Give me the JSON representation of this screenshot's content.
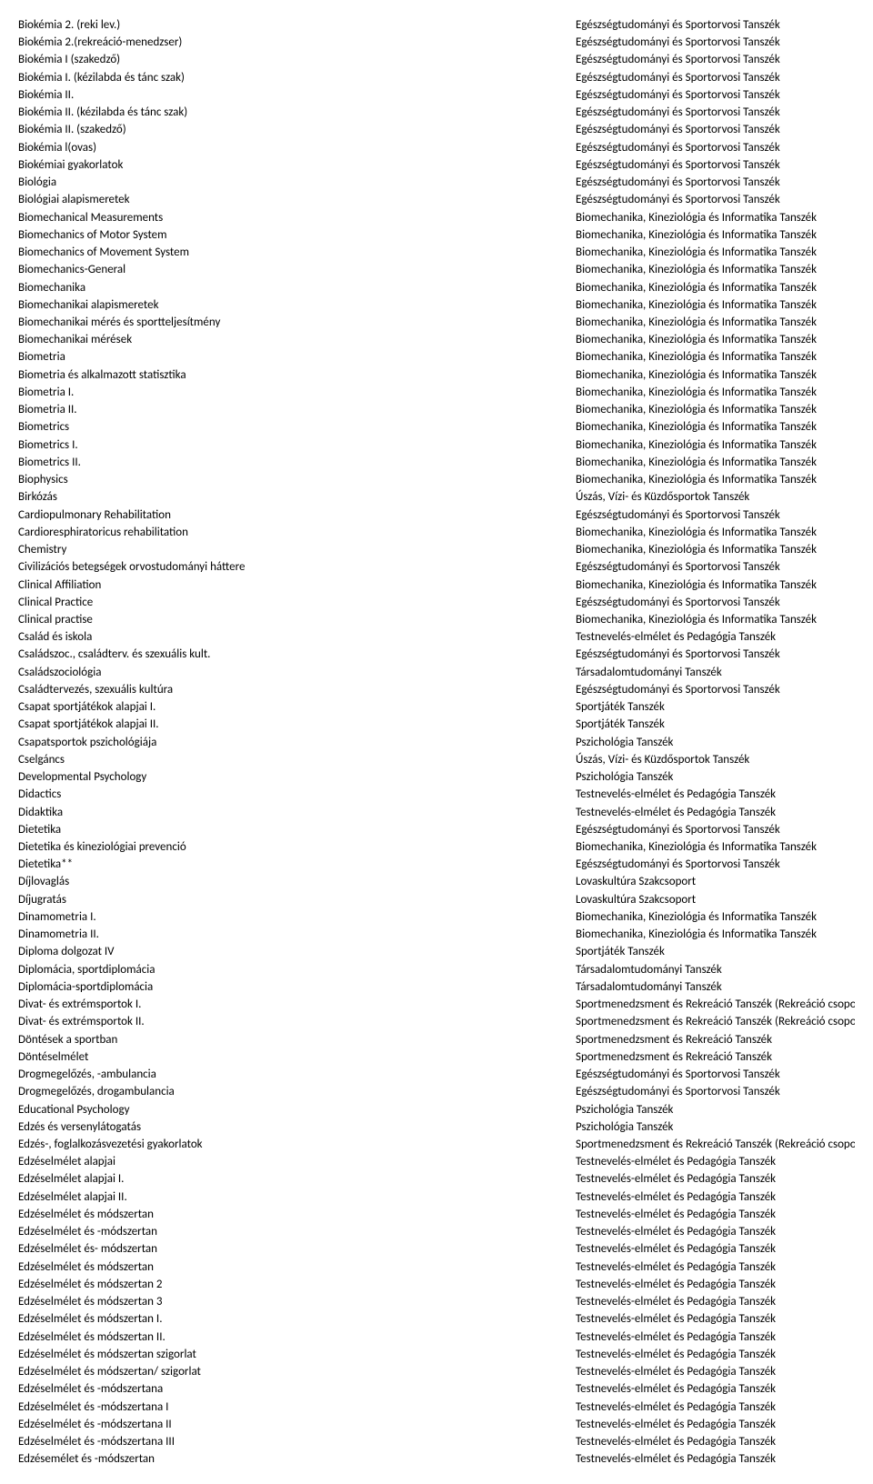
{
  "rows": [
    {
      "a": "Biokémia 2. (reki lev.)",
      "b": "Egészségtudományi és Sportorvosi Tanszék"
    },
    {
      "a": "Biokémia 2.(rekreáció-menedzser)",
      "b": "Egészségtudományi és Sportorvosi Tanszék"
    },
    {
      "a": "Biokémia I (szakedző)",
      "b": "Egészségtudományi és Sportorvosi Tanszék"
    },
    {
      "a": "Biokémia I. (kézilabda és tánc szak)",
      "b": "Egészségtudományi és Sportorvosi Tanszék"
    },
    {
      "a": "Biokémia II.",
      "b": "Egészségtudományi és Sportorvosi Tanszék"
    },
    {
      "a": "Biokémia II. (kézilabda és tánc szak)",
      "b": "Egészségtudományi és Sportorvosi Tanszék"
    },
    {
      "a": "Biokémia II. (szakedző)",
      "b": "Egészségtudományi és Sportorvosi Tanszék"
    },
    {
      "a": "Biokémia l(ovas)",
      "b": "Egészségtudományi és Sportorvosi Tanszék"
    },
    {
      "a": "Biokémiai gyakorlatok",
      "b": "Egészségtudományi és Sportorvosi Tanszék"
    },
    {
      "a": "Biológia",
      "b": "Egészségtudományi és Sportorvosi Tanszék"
    },
    {
      "a": "Biológiai alapismeretek",
      "b": "Egészségtudományi és Sportorvosi Tanszék"
    },
    {
      "a": "Biomechanical Measurements",
      "b": "Biomechanika, Kineziológia és Informatika Tanszék"
    },
    {
      "a": "Biomechanics of Motor System",
      "b": "Biomechanika, Kineziológia és Informatika Tanszék"
    },
    {
      "a": "Biomechanics of Movement System",
      "b": "Biomechanika, Kineziológia és Informatika Tanszék"
    },
    {
      "a": "Biomechanics-General",
      "b": "Biomechanika, Kineziológia és Informatika Tanszék"
    },
    {
      "a": "Biomechanika",
      "b": "Biomechanika, Kineziológia és Informatika Tanszék"
    },
    {
      "a": "Biomechanikai alapismeretek",
      "b": "Biomechanika, Kineziológia és Informatika Tanszék"
    },
    {
      "a": "Biomechanikai mérés és sportteljesítmény",
      "b": "Biomechanika, Kineziológia és Informatika Tanszék"
    },
    {
      "a": "Biomechanikai mérések",
      "b": "Biomechanika, Kineziológia és Informatika Tanszék"
    },
    {
      "a": "Biometria",
      "b": "Biomechanika, Kineziológia és Informatika Tanszék"
    },
    {
      "a": "Biometria és alkalmazott statisztika",
      "b": "Biomechanika, Kineziológia és Informatika Tanszék"
    },
    {
      "a": "Biometria I.",
      "b": "Biomechanika, Kineziológia és Informatika Tanszék"
    },
    {
      "a": "Biometria II.",
      "b": "Biomechanika, Kineziológia és Informatika Tanszék"
    },
    {
      "a": "Biometrics",
      "b": "Biomechanika, Kineziológia és Informatika Tanszék"
    },
    {
      "a": "Biometrics I.",
      "b": "Biomechanika, Kineziológia és Informatika Tanszék"
    },
    {
      "a": "Biometrics II.",
      "b": "Biomechanika, Kineziológia és Informatika Tanszék"
    },
    {
      "a": "Biophysics",
      "b": "Biomechanika, Kineziológia és Informatika Tanszék"
    },
    {
      "a": "Birkózás",
      "b": "Úszás, Vízi- és Küzdősportok Tanszék"
    },
    {
      "a": "Cardiopulmonary Rehabilitation",
      "b": "Egészségtudományi és Sportorvosi Tanszék"
    },
    {
      "a": "Cardioresphiratoricus rehabilitation",
      "b": "Biomechanika, Kineziológia és Informatika Tanszék"
    },
    {
      "a": "Chemistry",
      "b": "Biomechanika, Kineziológia és Informatika Tanszék"
    },
    {
      "a": "Civilizációs betegségek orvostudományi háttere",
      "b": "Egészségtudományi és Sportorvosi Tanszék"
    },
    {
      "a": "Clinical Affiliation",
      "b": "Biomechanika, Kineziológia és Informatika Tanszék"
    },
    {
      "a": "Clinical Practice",
      "b": "Egészségtudományi és Sportorvosi Tanszék"
    },
    {
      "a": "Clinical practise",
      "b": "Biomechanika, Kineziológia és Informatika Tanszék"
    },
    {
      "a": "Család és iskola",
      "b": "Testnevelés-elmélet és Pedagógia Tanszék"
    },
    {
      "a": "Családszoc., családterv. és szexuális kult.",
      "b": "Egészségtudományi és Sportorvosi Tanszék"
    },
    {
      "a": "Családszociológia",
      "b": "Társadalomtudományi Tanszék"
    },
    {
      "a": "Családtervezés, szexuális kultúra",
      "b": "Egészségtudományi és Sportorvosi Tanszék"
    },
    {
      "a": "Csapat sportjátékok alapjai I.",
      "b": "Sportjáték Tanszék"
    },
    {
      "a": "Csapat sportjátékok alapjai II.",
      "b": "Sportjáték Tanszék"
    },
    {
      "a": "Csapatsportok pszichológiája",
      "b": "Pszichológia Tanszék"
    },
    {
      "a": "Cselgáncs",
      "b": "Úszás, Vízi- és Küzdősportok Tanszék"
    },
    {
      "a": "Developmental Psychology",
      "b": "Pszichológia Tanszék"
    },
    {
      "a": "Didactics",
      "b": "Testnevelés-elmélet és Pedagógia Tanszék"
    },
    {
      "a": "Didaktika",
      "b": "Testnevelés-elmélet és Pedagógia Tanszék"
    },
    {
      "a": "Dietetika",
      "b": "Egészségtudományi és Sportorvosi Tanszék"
    },
    {
      "a": "Dietetika és kineziológiai prevenció",
      "b": "Biomechanika, Kineziológia és Informatika Tanszék"
    },
    {
      "a": "Dietetika**",
      "b": "Egészségtudományi és Sportorvosi Tanszék"
    },
    {
      "a": "Díjlovaglás",
      "b": "Lovaskultúra Szakcsoport"
    },
    {
      "a": "Díjugratás",
      "b": "Lovaskultúra Szakcsoport"
    },
    {
      "a": "Dinamometria I.",
      "b": "Biomechanika, Kineziológia és Informatika Tanszék"
    },
    {
      "a": "Dinamometria II.",
      "b": "Biomechanika, Kineziológia és Informatika Tanszék"
    },
    {
      "a": "Diploma dolgozat IV",
      "b": "Sportjáték Tanszék"
    },
    {
      "a": "Diplomácia, sportdiplomácia",
      "b": "Társadalomtudományi Tanszék"
    },
    {
      "a": "Diplomácia-sportdiplomácia",
      "b": "Társadalomtudományi Tanszék"
    },
    {
      "a": "Divat- és extrémsportok I.",
      "b": "Sportmenedzsment és Rekreáció Tanszék (Rekreáció csoport)"
    },
    {
      "a": "Divat- és extrémsportok II.",
      "b": "Sportmenedzsment és Rekreáció Tanszék (Rekreáció csoport)"
    },
    {
      "a": "Döntések a sportban",
      "b": "Sportmenedzsment és Rekreáció Tanszék"
    },
    {
      "a": "Döntéselmélet",
      "b": "Sportmenedzsment és Rekreáció Tanszék"
    },
    {
      "a": "Drogmegelőzés, -ambulancia",
      "b": "Egészségtudományi és Sportorvosi Tanszék"
    },
    {
      "a": "Drogmegelőzés, drogambulancia",
      "b": "Egészségtudományi és Sportorvosi Tanszék"
    },
    {
      "a": "Educational Psychology",
      "b": "Pszichológia Tanszék"
    },
    {
      "a": "Edzés és versenylátogatás",
      "b": "Pszichológia Tanszék"
    },
    {
      "a": "Edzés-, foglalkozásvezetési gyakorlatok",
      "b": "Sportmenedzsment és Rekreáció Tanszék (Rekreáció csoport)"
    },
    {
      "a": "Edzéselmélet alapjai",
      "b": "Testnevelés-elmélet és Pedagógia Tanszék"
    },
    {
      "a": "Edzéselmélet alapjai I.",
      "b": "Testnevelés-elmélet és Pedagógia Tanszék"
    },
    {
      "a": "Edzéselmélet alapjai II.",
      "b": "Testnevelés-elmélet és Pedagógia Tanszék"
    },
    {
      "a": "Edzéselmélet és módszertan",
      "b": "Testnevelés-elmélet és Pedagógia Tanszék"
    },
    {
      "a": "Edzéselmélet és -módszertan",
      "b": "Testnevelés-elmélet és Pedagógia Tanszék"
    },
    {
      "a": "Edzéselmélet és- módszertan",
      "b": "Testnevelés-elmélet és Pedagógia Tanszék"
    },
    {
      "a": "Edzéselmélet és módszertan",
      "b": "Testnevelés-elmélet és Pedagógia Tanszék"
    },
    {
      "a": "Edzéselmélet és módszertan 2",
      "b": "Testnevelés-elmélet és Pedagógia Tanszék"
    },
    {
      "a": "Edzéselmélet és módszertan 3",
      "b": "Testnevelés-elmélet és Pedagógia Tanszék"
    },
    {
      "a": "Edzéselmélet és módszertan I.",
      "b": "Testnevelés-elmélet és Pedagógia Tanszék"
    },
    {
      "a": "Edzéselmélet és módszertan II.",
      "b": "Testnevelés-elmélet és Pedagógia Tanszék"
    },
    {
      "a": "Edzéselmélet és módszertan szigorlat",
      "b": "Testnevelés-elmélet és Pedagógia Tanszék"
    },
    {
      "a": "Edzéselmélet és módszertan/ szigorlat",
      "b": "Testnevelés-elmélet és Pedagógia Tanszék"
    },
    {
      "a": "Edzéselmélet és -módszertana",
      "b": "Testnevelés-elmélet és Pedagógia Tanszék"
    },
    {
      "a": "Edzéselmélet és -módszertana I",
      "b": "Testnevelés-elmélet és Pedagógia Tanszék"
    },
    {
      "a": "Edzéselmélet és -módszertana II",
      "b": "Testnevelés-elmélet és Pedagógia Tanszék"
    },
    {
      "a": "Edzéselmélet és -módszertana III",
      "b": "Testnevelés-elmélet és Pedagógia Tanszék"
    },
    {
      "a": "Edzésemélet és -módszertan",
      "b": "Testnevelés-elmélet és Pedagógia Tanszék"
    }
  ]
}
